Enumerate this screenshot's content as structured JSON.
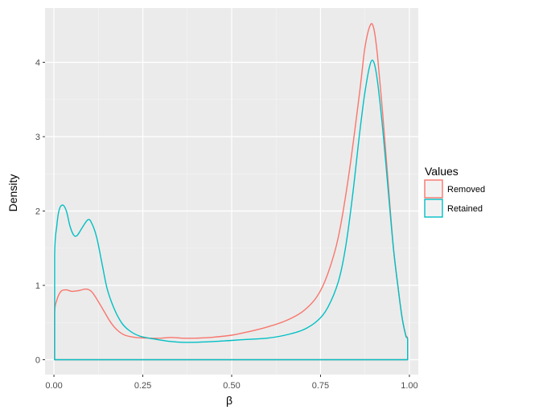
{
  "chart_data": {
    "type": "area",
    "xlabel": "β",
    "ylabel": "Density",
    "xlim": [
      -0.025,
      1.025
    ],
    "ylim": [
      -0.2,
      4.73
    ],
    "x_ticks": [
      "0.00",
      "0.25",
      "0.50",
      "0.75",
      "1.00"
    ],
    "x_tick_values": [
      0,
      0.25,
      0.5,
      0.75,
      1.0
    ],
    "y_ticks": [
      "0",
      "1",
      "2",
      "3",
      "4"
    ],
    "y_tick_values": [
      0,
      1,
      2,
      3,
      4
    ],
    "grid": true,
    "background": "#ebebeb",
    "legend": {
      "title": "Values",
      "position": "right"
    },
    "series": [
      {
        "name": "Removed",
        "color": "#f8766d",
        "points": [
          [
            0.002,
            0
          ],
          [
            0.002,
            0.62
          ],
          [
            0.008,
            0.8
          ],
          [
            0.02,
            0.92
          ],
          [
            0.035,
            0.94
          ],
          [
            0.05,
            0.92
          ],
          [
            0.07,
            0.93
          ],
          [
            0.09,
            0.95
          ],
          [
            0.105,
            0.92
          ],
          [
            0.12,
            0.82
          ],
          [
            0.14,
            0.66
          ],
          [
            0.16,
            0.5
          ],
          [
            0.18,
            0.39
          ],
          [
            0.2,
            0.33
          ],
          [
            0.23,
            0.3
          ],
          [
            0.27,
            0.29
          ],
          [
            0.3,
            0.29
          ],
          [
            0.33,
            0.3
          ],
          [
            0.36,
            0.29
          ],
          [
            0.4,
            0.29
          ],
          [
            0.44,
            0.3
          ],
          [
            0.5,
            0.33
          ],
          [
            0.55,
            0.38
          ],
          [
            0.6,
            0.44
          ],
          [
            0.65,
            0.52
          ],
          [
            0.7,
            0.65
          ],
          [
            0.74,
            0.85
          ],
          [
            0.77,
            1.15
          ],
          [
            0.8,
            1.65
          ],
          [
            0.83,
            2.5
          ],
          [
            0.86,
            3.6
          ],
          [
            0.875,
            4.2
          ],
          [
            0.89,
            4.5
          ],
          [
            0.9,
            4.45
          ],
          [
            0.91,
            4.1
          ],
          [
            0.925,
            3.3
          ],
          [
            0.94,
            2.4
          ],
          [
            0.955,
            1.5
          ],
          [
            0.97,
            0.9
          ],
          [
            0.98,
            0.55
          ],
          [
            0.99,
            0.33
          ],
          [
            0.995,
            0.28
          ],
          [
            0.995,
            0
          ]
        ]
      },
      {
        "name": "Retained",
        "color": "#00bfc4",
        "points": [
          [
            0.002,
            0
          ],
          [
            0.002,
            1.4
          ],
          [
            0.008,
            1.8
          ],
          [
            0.015,
            2.02
          ],
          [
            0.025,
            2.08
          ],
          [
            0.035,
            2.0
          ],
          [
            0.045,
            1.8
          ],
          [
            0.055,
            1.68
          ],
          [
            0.065,
            1.67
          ],
          [
            0.08,
            1.78
          ],
          [
            0.095,
            1.88
          ],
          [
            0.105,
            1.85
          ],
          [
            0.12,
            1.65
          ],
          [
            0.135,
            1.3
          ],
          [
            0.15,
            0.95
          ],
          [
            0.17,
            0.68
          ],
          [
            0.19,
            0.5
          ],
          [
            0.21,
            0.4
          ],
          [
            0.24,
            0.32
          ],
          [
            0.28,
            0.28
          ],
          [
            0.32,
            0.25
          ],
          [
            0.36,
            0.235
          ],
          [
            0.4,
            0.235
          ],
          [
            0.45,
            0.245
          ],
          [
            0.5,
            0.26
          ],
          [
            0.55,
            0.275
          ],
          [
            0.6,
            0.29
          ],
          [
            0.65,
            0.33
          ],
          [
            0.7,
            0.4
          ],
          [
            0.74,
            0.52
          ],
          [
            0.77,
            0.7
          ],
          [
            0.8,
            1.05
          ],
          [
            0.82,
            1.5
          ],
          [
            0.84,
            2.2
          ],
          [
            0.86,
            3.05
          ],
          [
            0.875,
            3.6
          ],
          [
            0.89,
            3.98
          ],
          [
            0.9,
            4.0
          ],
          [
            0.91,
            3.75
          ],
          [
            0.925,
            3.1
          ],
          [
            0.94,
            2.3
          ],
          [
            0.955,
            1.5
          ],
          [
            0.97,
            0.9
          ],
          [
            0.98,
            0.55
          ],
          [
            0.99,
            0.32
          ],
          [
            0.995,
            0.27
          ],
          [
            0.995,
            0
          ]
        ]
      }
    ]
  }
}
